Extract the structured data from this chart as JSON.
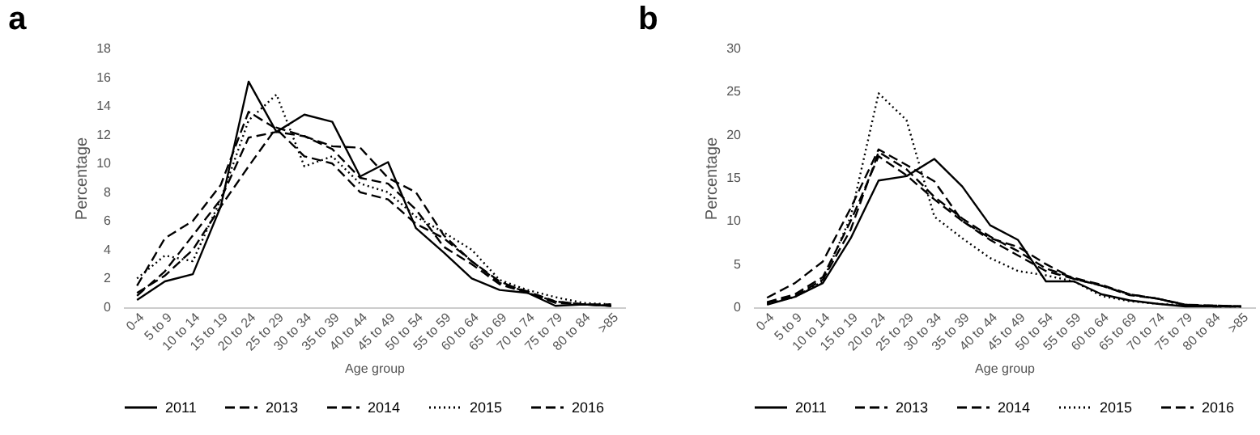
{
  "chart_data": [
    {
      "type": "line",
      "title": "a",
      "xlabel": "Age group",
      "ylabel": "Percentage",
      "legend": "bottom",
      "ylim": [
        0,
        18
      ],
      "yticks": [
        0,
        2,
        4,
        6,
        8,
        10,
        12,
        14,
        16,
        18
      ],
      "categories": [
        "0-4",
        "5 to 9",
        "10 to 14",
        "15 to 19",
        "20 to 24",
        "25 to 29",
        "30 to 34",
        "35 to 39",
        "40 to 44",
        "45 to 49",
        "50 to 54",
        "55 to 59",
        "60 to 64",
        "65 to 69",
        "70 to 74",
        "75 to 79",
        "80 to 84",
        ">85"
      ],
      "series": [
        {
          "name": "2011",
          "color": "#000000",
          "line_style": "solid",
          "values": [
            0.5,
            1.8,
            2.3,
            7,
            15.7,
            12.2,
            13.4,
            12.9,
            9.1,
            10.1,
            5.5,
            3.8,
            2.0,
            1.2,
            1.0,
            0.1,
            0.2,
            0.1
          ]
        },
        {
          "name": "2013",
          "color": "#000000",
          "line_style": "dashed",
          "values": [
            0.8,
            2.5,
            5,
            7.5,
            11.8,
            12.2,
            11.9,
            11,
            9,
            8.6,
            6.8,
            4.2,
            3,
            1.6,
            1.0,
            0.3,
            0.2,
            0.1
          ]
        },
        {
          "name": "2014",
          "color": "#000000",
          "line_style": "dashed",
          "values": [
            1.0,
            2.2,
            4.0,
            7,
            9.8,
            12.5,
            11.9,
            11.2,
            11.1,
            9,
            8,
            5,
            3.2,
            1.7,
            1.1,
            0.4,
            0.2,
            0.2
          ]
        },
        {
          "name": "2015",
          "color": "#000000",
          "line_style": "dotted",
          "values": [
            2.0,
            3.6,
            3.2,
            7.5,
            13,
            14.8,
            9.8,
            10.5,
            8.6,
            8.0,
            6.3,
            5.2,
            4,
            1.9,
            1.2,
            0.7,
            0.3,
            0.2
          ]
        },
        {
          "name": "2016",
          "color": "#000000",
          "line_style": "dashed",
          "values": [
            1.5,
            4.8,
            6,
            8.5,
            13.6,
            12.4,
            10.5,
            10,
            8,
            7.5,
            5.8,
            4.8,
            3.2,
            1.8,
            1.0,
            0.4,
            0.2,
            0.1
          ]
        }
      ]
    },
    {
      "type": "line",
      "title": "b",
      "xlabel": "Age group",
      "ylabel": "Percentage",
      "legend": "bottom",
      "ylim": [
        0,
        30
      ],
      "yticks": [
        0,
        5,
        10,
        15,
        20,
        25,
        30
      ],
      "categories": [
        "0-4",
        "5 to 9",
        "10 to 14",
        "15 to 19",
        "20 to 24",
        "25 to 29",
        "30 to 34",
        "35 to 39",
        "40 to 44",
        "45 to 49",
        "50 to 54",
        "55 to 59",
        "60 to 64",
        "65 to 69",
        "70 to 74",
        "75 to 79",
        "80 to 84",
        ">85"
      ],
      "series": [
        {
          "name": "2011",
          "color": "#000000",
          "line_style": "solid",
          "values": [
            0.3,
            1.2,
            2.8,
            8,
            14.7,
            15.2,
            17.2,
            14,
            9.5,
            7.8,
            3,
            3,
            1.5,
            0.8,
            0.4,
            0.1,
            0.1,
            0.1
          ]
        },
        {
          "name": "2013",
          "color": "#000000",
          "line_style": "dashed",
          "values": [
            0.6,
            1.5,
            3.5,
            10,
            17.5,
            15.3,
            12.5,
            10,
            8,
            7,
            5,
            3.3,
            2.5,
            1.4,
            1,
            0.3,
            0.1,
            0.1
          ]
        },
        {
          "name": "2014",
          "color": "#000000",
          "line_style": "dashed",
          "values": [
            0.5,
            1.3,
            3.2,
            9,
            18,
            16,
            12.8,
            10.3,
            8.2,
            6.5,
            4.5,
            3.4,
            2.6,
            1.5,
            1,
            0.3,
            0.2,
            0.1
          ]
        },
        {
          "name": "2015",
          "color": "#000000",
          "line_style": "dotted",
          "values": [
            0.4,
            1.2,
            3,
            10.5,
            24.8,
            21.7,
            10.5,
            8,
            5.7,
            4.2,
            3.7,
            3,
            1.3,
            0.7,
            0.4,
            0.2,
            0.1,
            0.1
          ]
        },
        {
          "name": "2016",
          "color": "#000000",
          "line_style": "dashed",
          "values": [
            1.1,
            2.8,
            5.3,
            11.5,
            18.3,
            16.5,
            14.6,
            10,
            7.8,
            6,
            4.2,
            3.3,
            2.5,
            1.5,
            1,
            0.2,
            0.2,
            0.1
          ]
        }
      ]
    }
  ]
}
